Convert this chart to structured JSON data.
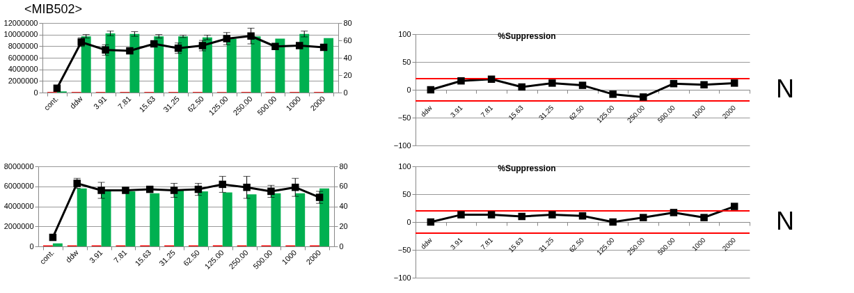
{
  "chart_data": [
    {
      "type": "bar",
      "title": "<MIB502>",
      "categories": [
        "cont.",
        "ddw",
        "3.91",
        "7.81",
        "15.63",
        "31.25",
        "62.50",
        "125.00",
        "250.00",
        "500.00",
        "1000",
        "2000"
      ],
      "series": [
        {
          "type": "bar",
          "color": "#ff0000",
          "values": [
            100000,
            100000,
            100000,
            100000,
            100000,
            100000,
            100000,
            100000,
            100000,
            100000,
            100000,
            100000
          ]
        },
        {
          "type": "bar",
          "color": "#00b050",
          "values": [
            200000,
            9700000,
            10200000,
            10100000,
            9700000,
            9700000,
            9500000,
            9300000,
            9700000,
            9300000,
            10100000,
            9400000
          ],
          "errors": [
            null,
            300000,
            400000,
            400000,
            300000,
            200000,
            400000,
            null,
            null,
            null,
            500000,
            null
          ]
        },
        {
          "type": "line",
          "axis": "y2",
          "color": "#000000",
          "values": [
            5,
            58,
            49,
            48,
            56,
            51,
            54,
            62,
            65,
            53,
            54,
            52
          ],
          "errors": [
            null,
            5,
            6,
            null,
            null,
            6,
            6,
            7,
            9,
            null,
            null,
            3
          ]
        }
      ],
      "ylim": [
        0,
        12000000
      ],
      "yticks": [
        0,
        2000000,
        4000000,
        6000000,
        8000000,
        10000000,
        12000000
      ],
      "y2lim": [
        0,
        80
      ],
      "y2ticks": [
        0,
        20,
        40,
        60,
        80
      ],
      "grid": "y",
      "marker": "square"
    },
    {
      "type": "line",
      "title": "%Suppression",
      "categories": [
        "ddw",
        "3.91",
        "7.81",
        "15.63",
        "31.25",
        "62.50",
        "125.00",
        "250.00",
        "500.00",
        "1000",
        "2000"
      ],
      "series": [
        {
          "color": "#000000",
          "values": [
            0,
            16,
            19,
            5,
            12,
            8,
            -8,
            -13,
            11,
            9,
            12
          ]
        }
      ],
      "ylim": [
        -100,
        100
      ],
      "yticks": [
        -100,
        -50,
        0,
        50,
        100
      ],
      "grid": "y",
      "marker": "square",
      "ref_lines": [
        {
          "axis": "y",
          "value": 20,
          "color": "#ff0000"
        },
        {
          "axis": "y",
          "value": -20,
          "color": "#ff0000"
        }
      ],
      "annotations": [
        "N"
      ]
    },
    {
      "type": "bar",
      "categories": [
        "cont.",
        "ddw",
        "3.91",
        "7.81",
        "15.63",
        "31.25",
        "62.50",
        "125.00",
        "250.00",
        "500.00",
        "1000",
        "2000"
      ],
      "series": [
        {
          "type": "bar",
          "color": "#ff0000",
          "values": [
            100000,
            100000,
            100000,
            100000,
            100000,
            100000,
            100000,
            100000,
            100000,
            100000,
            100000,
            100000
          ]
        },
        {
          "type": "bar",
          "color": "#00b050",
          "values": [
            300000,
            5800000,
            5700000,
            5500000,
            5300000,
            5700000,
            5500000,
            5400000,
            5200000,
            5300000,
            5300000,
            5800000
          ]
        },
        {
          "type": "line",
          "axis": "y2",
          "color": "#000000",
          "values": [
            9,
            63,
            56,
            56,
            57,
            56,
            57,
            62,
            59,
            55,
            59,
            49
          ],
          "errors": [
            null,
            5,
            8,
            null,
            null,
            7,
            6,
            8,
            11,
            6,
            9,
            6
          ]
        }
      ],
      "ylim": [
        0,
        8000000
      ],
      "yticks": [
        0,
        2000000,
        4000000,
        6000000,
        8000000
      ],
      "y2lim": [
        0,
        80
      ],
      "y2ticks": [
        0,
        20,
        40,
        60,
        80
      ],
      "grid": "y",
      "marker": "square"
    },
    {
      "type": "line",
      "title": "%Suppression",
      "categories": [
        "ddw",
        "3.91",
        "7.81",
        "15.63",
        "31.25",
        "62.50",
        "125.00",
        "250.00",
        "500.00",
        "1000",
        "2000"
      ],
      "series": [
        {
          "color": "#000000",
          "values": [
            0,
            13,
            13,
            10,
            13,
            11,
            0,
            8,
            17,
            8,
            28
          ]
        }
      ],
      "ylim": [
        -100,
        100
      ],
      "yticks": [
        -100,
        -50,
        0,
        50,
        100
      ],
      "grid": "y",
      "marker": "square",
      "ref_lines": [
        {
          "axis": "y",
          "value": 20,
          "color": "#ff0000"
        },
        {
          "axis": "y",
          "value": -20,
          "color": "#ff0000"
        }
      ],
      "annotations": [
        "N"
      ]
    }
  ]
}
